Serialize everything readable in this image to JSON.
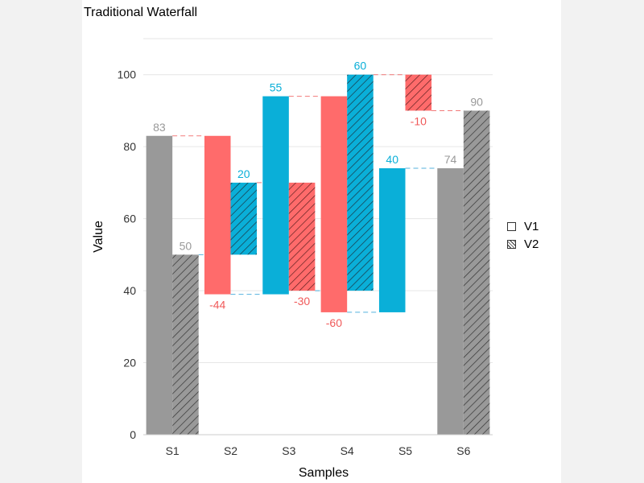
{
  "chart_data": {
    "type": "bar",
    "subtype": "waterfall",
    "title": "Traditional Waterfall",
    "xlabel": "Samples",
    "ylabel": "Value",
    "ylim": [
      0,
      110
    ],
    "yticks": [
      0,
      20,
      40,
      60,
      80,
      100
    ],
    "categories": [
      "S1",
      "S2",
      "S3",
      "S4",
      "S5",
      "S6"
    ],
    "grid": true,
    "legend_position": "right",
    "colors": {
      "total": "#999999",
      "increase": "#0aafd8",
      "decrease": "#ff6b6b",
      "total_label": "#999999",
      "increase_label": "#0aafd8",
      "decrease_label": "#f05a5a"
    },
    "series": [
      {
        "name": "V1",
        "pattern": "solid",
        "bars": [
          {
            "category": "S1",
            "kind": "total",
            "start": 0,
            "end": 83,
            "label": "83"
          },
          {
            "category": "S2",
            "kind": "decrease",
            "start": 83,
            "end": 39,
            "label": "-44"
          },
          {
            "category": "S3",
            "kind": "increase",
            "start": 39,
            "end": 94,
            "label": "55"
          },
          {
            "category": "S4",
            "kind": "decrease",
            "start": 94,
            "end": 34,
            "label": "-60"
          },
          {
            "category": "S5",
            "kind": "increase",
            "start": 34,
            "end": 74,
            "label": "40"
          },
          {
            "category": "S6",
            "kind": "total",
            "start": 0,
            "end": 74,
            "label": "74"
          }
        ]
      },
      {
        "name": "V2",
        "pattern": "hatched",
        "bars": [
          {
            "category": "S1",
            "kind": "total",
            "start": 0,
            "end": 50,
            "label": "50"
          },
          {
            "category": "S2",
            "kind": "increase",
            "start": 50,
            "end": 70,
            "label": "20"
          },
          {
            "category": "S3",
            "kind": "decrease",
            "start": 70,
            "end": 40,
            "label": "-30"
          },
          {
            "category": "S4",
            "kind": "increase",
            "start": 40,
            "end": 100,
            "label": "60"
          },
          {
            "category": "S5",
            "kind": "decrease",
            "start": 100,
            "end": 90,
            "label": "-10"
          },
          {
            "category": "S6",
            "kind": "total",
            "start": 0,
            "end": 90,
            "label": "90"
          }
        ]
      }
    ]
  }
}
